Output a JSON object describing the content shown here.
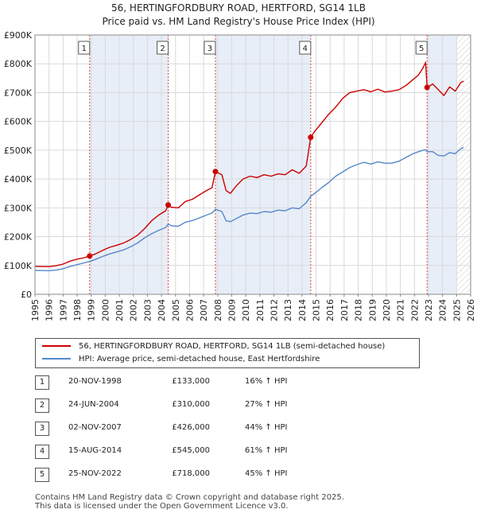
{
  "title": {
    "line1": "56, HERTINGFORDBURY ROAD, HERTFORD, SG14 1LB",
    "line2": "Price paid vs. HM Land Registry's House Price Index (HPI)"
  },
  "colors": {
    "property": "#cc0000",
    "hpi": "#5588cc",
    "shade": "#e8eef8",
    "grid": "#d9d9d9",
    "marker_line": "#dd4444"
  },
  "chart_data": {
    "type": "line",
    "title": "Price paid vs. HM Land Registry's House Price Index (HPI)",
    "xlim": [
      1995,
      2026
    ],
    "ylim": [
      0,
      900000
    ],
    "x_ticks": [
      "1995",
      "1996",
      "1997",
      "1998",
      "1999",
      "2000",
      "2001",
      "2002",
      "2003",
      "2004",
      "2005",
      "2006",
      "2007",
      "2008",
      "2009",
      "2010",
      "2011",
      "2012",
      "2013",
      "2014",
      "2015",
      "2016",
      "2017",
      "2018",
      "2019",
      "2020",
      "2021",
      "2022",
      "2023",
      "2024",
      "2025",
      "2026"
    ],
    "y_ticks": [
      {
        "value": 0,
        "label": "£0"
      },
      {
        "value": 100000,
        "label": "£100K"
      },
      {
        "value": 200000,
        "label": "£200K"
      },
      {
        "value": 300000,
        "label": "£300K"
      },
      {
        "value": 400000,
        "label": "£400K"
      },
      {
        "value": 500000,
        "label": "£500K"
      },
      {
        "value": 600000,
        "label": "£600K"
      },
      {
        "value": 700000,
        "label": "£700K"
      },
      {
        "value": 800000,
        "label": "£800K"
      },
      {
        "value": 900000,
        "label": "£900K"
      }
    ],
    "grid": true,
    "series": [
      {
        "name": "56, HERTINGFORDBURY ROAD, HERTFORD, SG14 1LB (semi-detached house)",
        "x": [
          1995.0,
          1996.0,
          1996.5,
          1997.0,
          1997.5,
          1998.0,
          1998.5,
          1998.89,
          1999.3,
          1999.8,
          2000.3,
          2000.8,
          2001.3,
          2001.8,
          2002.3,
          2002.8,
          2003.3,
          2003.8,
          2004.3,
          2004.48,
          2004.7,
          2005.2,
          2005.7,
          2006.2,
          2006.7,
          2007.2,
          2007.6,
          2007.84,
          2008.3,
          2008.6,
          2008.9,
          2009.3,
          2009.8,
          2010.3,
          2010.8,
          2011.3,
          2011.8,
          2012.3,
          2012.8,
          2013.3,
          2013.8,
          2014.3,
          2014.62,
          2014.9,
          2015.4,
          2015.9,
          2016.4,
          2016.9,
          2017.4,
          2017.9,
          2018.4,
          2018.9,
          2019.4,
          2019.9,
          2020.4,
          2020.9,
          2021.4,
          2021.9,
          2022.3,
          2022.6,
          2022.8,
          2022.9,
          2023.3,
          2023.7,
          2024.1,
          2024.5,
          2024.9,
          2025.3,
          2025.5
        ],
        "values": [
          97000,
          96000,
          99000,
          105000,
          115000,
          122000,
          127000,
          133000,
          140000,
          152000,
          163000,
          170000,
          178000,
          190000,
          205000,
          228000,
          255000,
          275000,
          290000,
          310000,
          302000,
          300000,
          322000,
          330000,
          345000,
          360000,
          370000,
          426000,
          415000,
          360000,
          350000,
          375000,
          400000,
          410000,
          405000,
          415000,
          410000,
          418000,
          415000,
          432000,
          420000,
          445000,
          545000,
          565000,
          595000,
          625000,
          650000,
          680000,
          700000,
          705000,
          710000,
          703000,
          712000,
          702000,
          705000,
          710000,
          725000,
          745000,
          762000,
          785000,
          805000,
          718000,
          730000,
          710000,
          690000,
          720000,
          705000,
          735000,
          740000
        ]
      },
      {
        "name": "HPI: Average price, semi-detached house, East Hertfordshire",
        "x": [
          1995.0,
          1996.0,
          1996.5,
          1997.0,
          1997.5,
          1998.0,
          1998.5,
          1998.89,
          1999.3,
          1999.8,
          2000.3,
          2000.8,
          2001.3,
          2001.8,
          2002.3,
          2002.8,
          2003.3,
          2003.8,
          2004.3,
          2004.48,
          2004.7,
          2005.2,
          2005.7,
          2006.2,
          2006.7,
          2007.2,
          2007.6,
          2007.84,
          2008.3,
          2008.6,
          2008.9,
          2009.3,
          2009.8,
          2010.3,
          2010.8,
          2011.3,
          2011.8,
          2012.3,
          2012.8,
          2013.3,
          2013.8,
          2014.3,
          2014.62,
          2014.9,
          2015.4,
          2015.9,
          2016.4,
          2016.9,
          2017.4,
          2017.9,
          2018.4,
          2018.9,
          2019.4,
          2019.9,
          2020.4,
          2020.9,
          2021.4,
          2021.9,
          2022.3,
          2022.6,
          2022.8,
          2022.9,
          2023.3,
          2023.7,
          2024.1,
          2024.5,
          2024.9,
          2025.3,
          2025.5
        ],
        "values": [
          83000,
          82000,
          84000,
          89000,
          97000,
          103000,
          109000,
          114000,
          121000,
          131000,
          140000,
          147000,
          154000,
          165000,
          178000,
          196000,
          210000,
          222000,
          232000,
          244000,
          238000,
          236000,
          250000,
          256000,
          265000,
          275000,
          282000,
          295000,
          287000,
          255000,
          252000,
          262000,
          275000,
          282000,
          280000,
          287000,
          285000,
          292000,
          290000,
          300000,
          297000,
          318000,
          340000,
          350000,
          370000,
          388000,
          410000,
          425000,
          440000,
          450000,
          458000,
          452000,
          460000,
          455000,
          455000,
          462000,
          475000,
          488000,
          495000,
          500000,
          502000,
          495000,
          495000,
          482000,
          480000,
          492000,
          488000,
          505000,
          510000
        ]
      }
    ],
    "sales": [
      {
        "num": "1",
        "x": 1998.89
      },
      {
        "num": "2",
        "x": 2004.48
      },
      {
        "num": "3",
        "x": 2007.84
      },
      {
        "num": "4",
        "x": 2014.62
      },
      {
        "num": "5",
        "x": 2022.9
      }
    ],
    "shaded_ranges": [
      [
        1998.89,
        2004.48
      ],
      [
        2007.84,
        2014.62
      ],
      [
        2022.9,
        2025.0
      ]
    ],
    "hatch_from": 2025.0
  },
  "legend": {
    "property_label": "56, HERTINGFORDBURY ROAD, HERTFORD, SG14 1LB (semi-detached house)",
    "hpi_label": "HPI: Average price, semi-detached house, East Hertfordshire"
  },
  "sales_table": [
    {
      "num": "1",
      "date": "20-NOV-1998",
      "price": "£133,000",
      "hpi": "16% ↑ HPI"
    },
    {
      "num": "2",
      "date": "24-JUN-2004",
      "price": "£310,000",
      "hpi": "27% ↑ HPI"
    },
    {
      "num": "3",
      "date": "02-NOV-2007",
      "price": "£426,000",
      "hpi": "44% ↑ HPI"
    },
    {
      "num": "4",
      "date": "15-AUG-2014",
      "price": "£545,000",
      "hpi": "61% ↑ HPI"
    },
    {
      "num": "5",
      "date": "25-NOV-2022",
      "price": "£718,000",
      "hpi": "45% ↑ HPI"
    }
  ],
  "footer": {
    "line1": "Contains HM Land Registry data © Crown copyright and database right 2025.",
    "line2": "This data is licensed under the Open Government Licence v3.0."
  }
}
